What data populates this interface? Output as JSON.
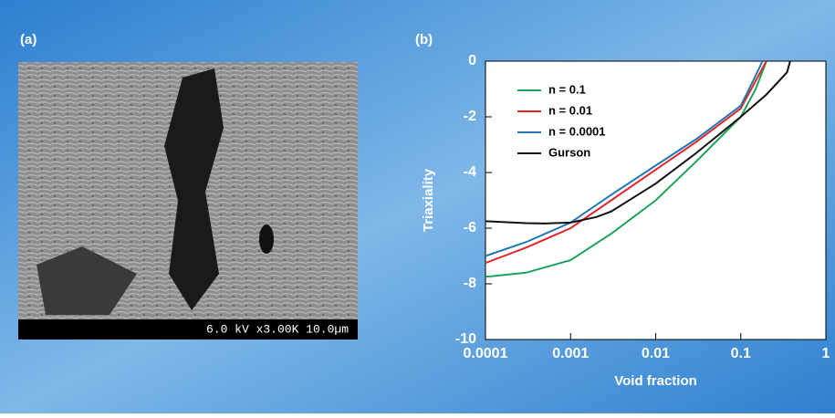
{
  "panel_labels": [
    "(a)",
    "(b)"
  ],
  "micrograph": {
    "caption": "6.0 kV x3.00K 10.0µm"
  },
  "chart_data": {
    "type": "line",
    "x_label": "Void fraction",
    "y_label": "Triaxiality",
    "xscale": "log",
    "xlim": [
      0.0001,
      1
    ],
    "xticks": [
      0.0001,
      0.001,
      0.01,
      0.1,
      1
    ],
    "ylim": [
      -10,
      0
    ],
    "yticks": [
      -10,
      -8,
      -6,
      -4,
      -2,
      0
    ],
    "legend": "upper left",
    "series": [
      {
        "name": "n = 0.1",
        "color": "#1aa35a",
        "x": [
          0.0001,
          0.0003,
          0.001,
          0.003,
          0.01,
          0.03,
          0.1,
          0.15,
          0.2
        ],
        "values": [
          -7.75,
          -7.6,
          -7.15,
          -6.2,
          -5.0,
          -3.6,
          -2.0,
          -1.0,
          0
        ]
      },
      {
        "name": "n = 0.01",
        "color": "#e0262b",
        "x": [
          0.0001,
          0.0003,
          0.001,
          0.003,
          0.01,
          0.03,
          0.1,
          0.15,
          0.2
        ],
        "values": [
          -7.25,
          -6.7,
          -6.0,
          -5.0,
          -3.9,
          -2.9,
          -1.7,
          -0.7,
          0
        ]
      },
      {
        "name": "n = 0.0001",
        "color": "#1f78b4",
        "x": [
          0.0001,
          0.0003,
          0.001,
          0.003,
          0.01,
          0.03,
          0.1,
          0.14,
          0.18
        ],
        "values": [
          -7.0,
          -6.5,
          -5.8,
          -4.8,
          -3.75,
          -2.8,
          -1.6,
          -0.7,
          0
        ]
      },
      {
        "name": "Gurson",
        "color": "#111111",
        "x": [
          0.0001,
          0.0003,
          0.0005,
          0.001,
          0.002,
          0.003,
          0.01,
          0.03,
          0.1,
          0.2,
          0.35,
          0.38
        ],
        "values": [
          -5.75,
          -5.82,
          -5.83,
          -5.8,
          -5.6,
          -5.4,
          -4.4,
          -3.3,
          -2.0,
          -1.2,
          -0.4,
          0
        ]
      }
    ]
  }
}
